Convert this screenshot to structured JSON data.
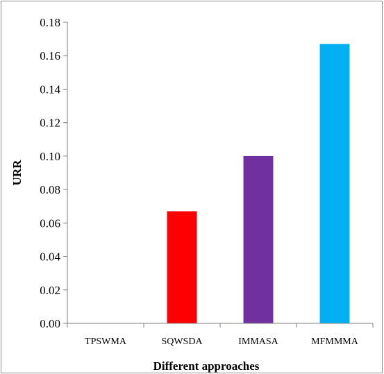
{
  "chart_data": {
    "type": "bar",
    "categories": [
      "TPSWMA",
      "SQWSDA",
      "IMMASA",
      "MFMMMA"
    ],
    "values": [
      0.0,
      0.067,
      0.1,
      0.167
    ],
    "colors": [
      "#ffffff",
      "#ff0000",
      "#7030a0",
      "#00b0f0"
    ],
    "xlabel": "Different approaches",
    "ylabel": "URR",
    "ylim": [
      0,
      0.18
    ],
    "yticks": [
      "0.00",
      "0.02",
      "0.04",
      "0.06",
      "0.08",
      "0.10",
      "0.12",
      "0.14",
      "0.16",
      "0.18"
    ],
    "grid": false,
    "legend": "none"
  }
}
